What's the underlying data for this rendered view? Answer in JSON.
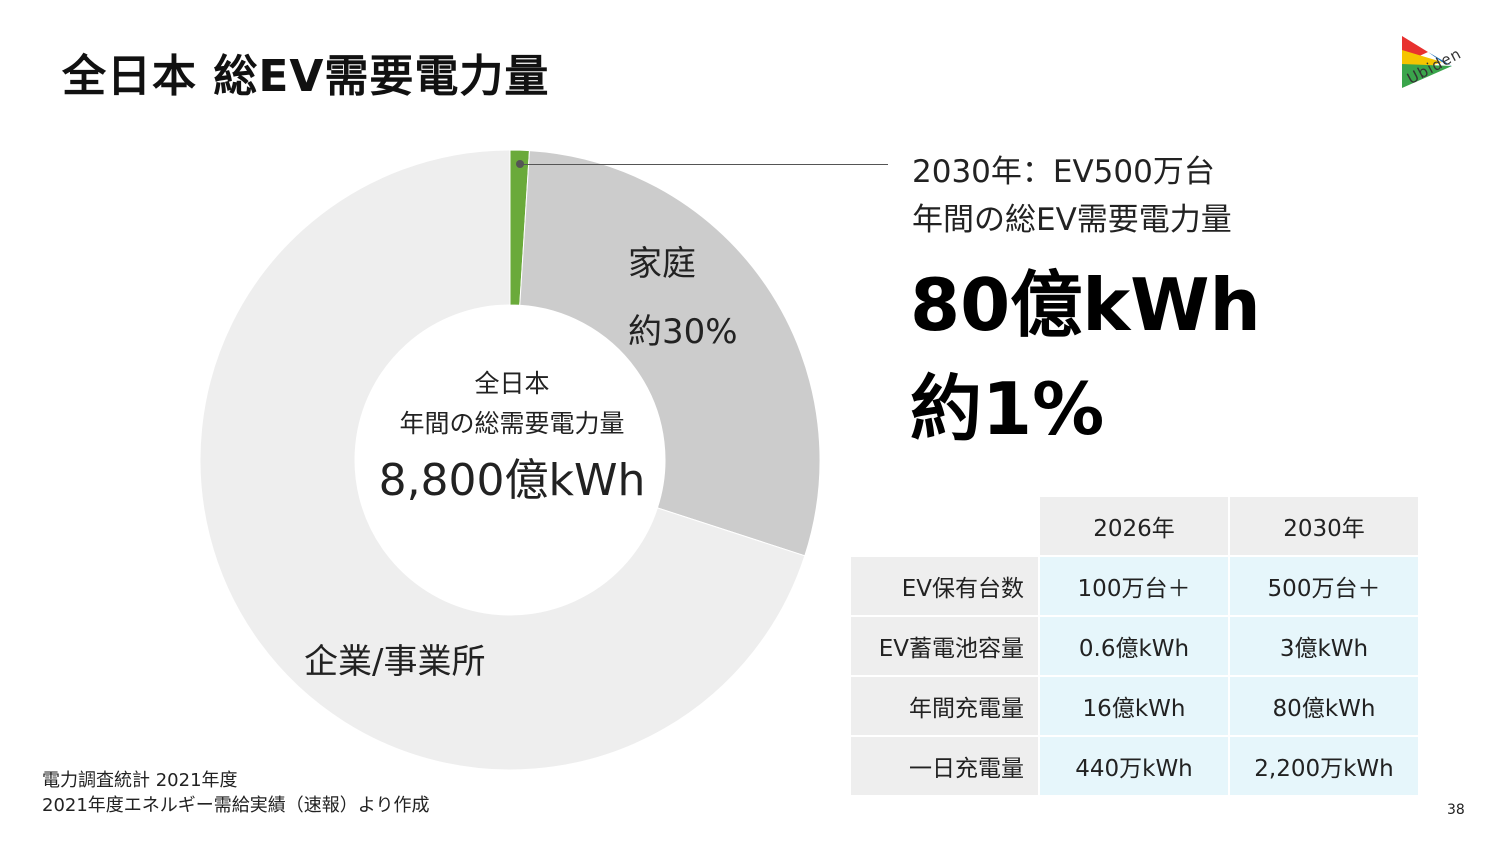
{
  "title": "全日本 総EV需要電力量",
  "logo": {
    "text": "Ubiden",
    "colors": [
      "#e8312f",
      "#f5c400",
      "#3aa54b",
      "#1d6fb8"
    ]
  },
  "chart_data": {
    "type": "pie",
    "labels": [
      "EV",
      "家庭",
      "企業/事業所"
    ],
    "values": [
      1,
      29,
      70
    ],
    "colors": [
      "#6aaa3a",
      "#cccccc",
      "#eeeeee"
    ],
    "center_title": "全日本",
    "center_subtitle": "年間の総需要電力量",
    "center_value": "8,800億kWh",
    "slice_labels": {
      "home_name": "家庭",
      "home_pct": "約30%",
      "corp_name": "企業/事業所"
    }
  },
  "callout": {
    "line1": "2030年：EV500万台",
    "line2": "年間の総EV需要電力量",
    "big_value": "80億kWh",
    "big_pct": "約1%"
  },
  "table": {
    "columns": [
      "2026年",
      "2030年"
    ],
    "rows": [
      {
        "label": "EV保有台数",
        "values": [
          "100万台＋",
          "500万台＋"
        ]
      },
      {
        "label": "EV蓄電池容量",
        "values": [
          "0.6億kWh",
          "3億kWh"
        ]
      },
      {
        "label": "年間充電量",
        "values": [
          "16億kWh",
          "80億kWh"
        ]
      },
      {
        "label": "一日充電量",
        "values": [
          "440万kWh",
          "2,200万kWh"
        ]
      }
    ]
  },
  "source": {
    "line1": "電力調査統計 2021年度",
    "line2": "2021年度エネルギー需給実績（速報）より作成"
  },
  "page_number": "38"
}
